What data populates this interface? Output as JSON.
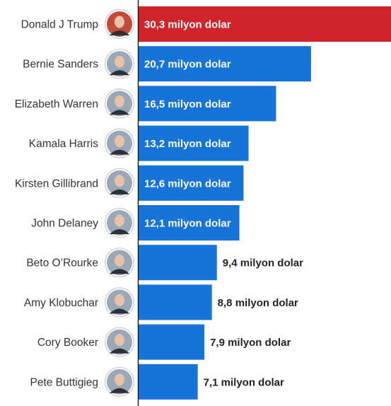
{
  "chart_data": {
    "type": "bar",
    "orientation": "horizontal",
    "categories": [
      "Donald J Trump",
      "Bernie Sanders",
      "Elizabeth Warren",
      "Kamala Harris",
      "Kirsten Gillibrand",
      "John Delaney",
      "Beto O’Rourke",
      "Amy Klobuchar",
      "Cory Booker",
      "Pete Buttigieg"
    ],
    "values": [
      30.3,
      20.7,
      16.5,
      13.2,
      12.6,
      12.1,
      9.4,
      8.8,
      7.9,
      7.1
    ],
    "value_labels": [
      "30,3 milyon dolar",
      "20,7 milyon dolar",
      "16,5 milyon dolar",
      "13,2 milyon dolar",
      "12,6 milyon dolar",
      "12,1 milyon dolar",
      "9,4 milyon dolar",
      "8,8 milyon dolar",
      "7,9 milyon dolar",
      "7,1 milyon dolar"
    ],
    "xlim": [
      0,
      30.3
    ],
    "grid": false,
    "legend": "none",
    "colors": {
      "highlight": "#d0232a",
      "default": "#1673d8",
      "axis": "#222222",
      "label_inside": "#ffffff",
      "label_outside": "#222222",
      "name_text": "#333333"
    },
    "highlight_index": 0,
    "icons": [
      "avatar-icon"
    ]
  }
}
